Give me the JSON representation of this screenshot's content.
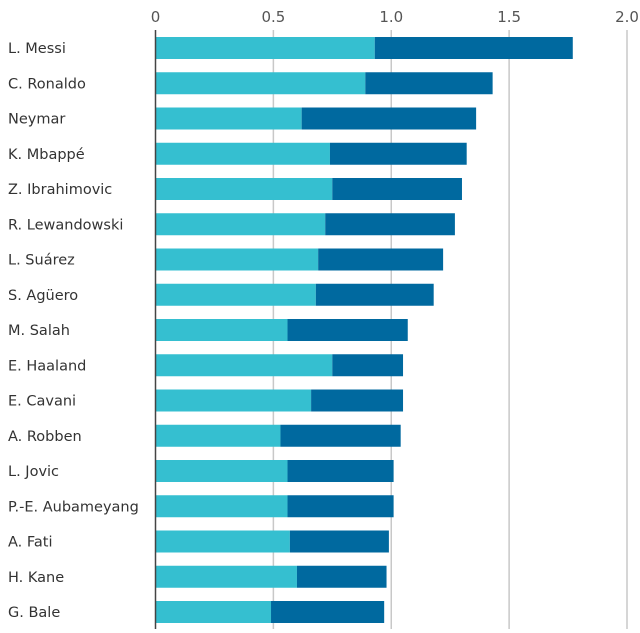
{
  "chart_data": {
    "type": "bar",
    "orientation": "horizontal",
    "stacked": true,
    "title": "",
    "xlabel": "",
    "ylabel": "",
    "xlim": [
      0,
      2.0
    ],
    "x_ticks": [
      "0",
      "0.5",
      "1.0",
      "1.5",
      "2.0"
    ],
    "x_tick_values": [
      0,
      0.5,
      1.0,
      1.5,
      2.0
    ],
    "grid": "vertical",
    "legend": "none",
    "colors": [
      "#35bfd0",
      "#00699f"
    ],
    "categories": [
      "L. Messi",
      "C. Ronaldo",
      "Neymar",
      "K. Mbappé",
      "Z. Ibrahimovic",
      "R. Lewandowski",
      "L. Suárez",
      "S. Agüero",
      "M. Salah",
      "E. Haaland",
      "E. Cavani",
      "A. Robben",
      "L. Jovic",
      "P.-E. Aubameyang",
      "A. Fati",
      "H. Kane",
      "G. Bale"
    ],
    "series": [
      {
        "values": [
          0.93,
          0.89,
          0.62,
          0.74,
          0.75,
          0.72,
          0.69,
          0.68,
          0.56,
          0.75,
          0.66,
          0.53,
          0.56,
          0.56,
          0.57,
          0.6,
          0.49
        ]
      },
      {
        "values": [
          0.84,
          0.54,
          0.74,
          0.58,
          0.55,
          0.55,
          0.53,
          0.5,
          0.51,
          0.3,
          0.39,
          0.51,
          0.45,
          0.45,
          0.42,
          0.38,
          0.48
        ]
      }
    ]
  }
}
